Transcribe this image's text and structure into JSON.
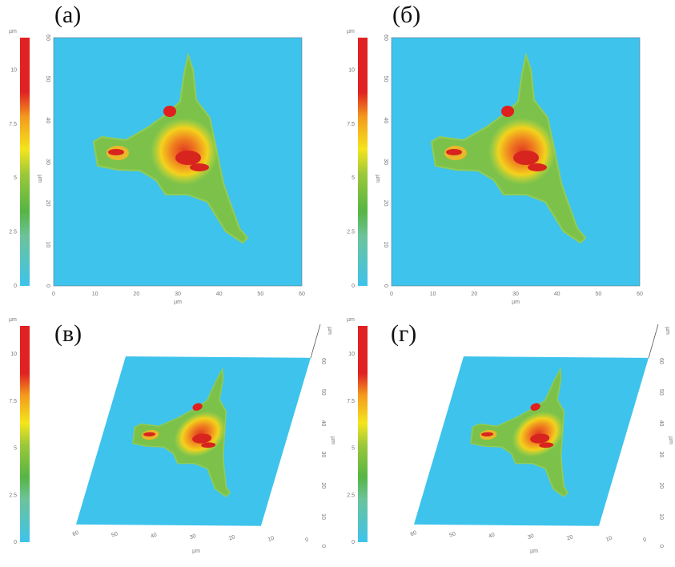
{
  "panels": [
    {
      "label": "(а)",
      "view": "2d"
    },
    {
      "label": "(б)",
      "view": "2d"
    },
    {
      "label": "(в)",
      "view": "3d"
    },
    {
      "label": "(г)",
      "view": "3d"
    }
  ],
  "unit": "µm",
  "colorbar": {
    "ticks": [
      "0",
      "2.5",
      "5",
      "7.5",
      "10"
    ],
    "range": [
      0,
      11.5
    ]
  },
  "axis_ticks": [
    "0",
    "10",
    "20",
    "30",
    "40",
    "50",
    "60"
  ],
  "axis_label": "µm",
  "colors": {
    "low": "#3ec3ec",
    "green": "#55b544",
    "yellow": "#f4e51c",
    "orange": "#f39a1d",
    "high": "#e02222"
  }
}
